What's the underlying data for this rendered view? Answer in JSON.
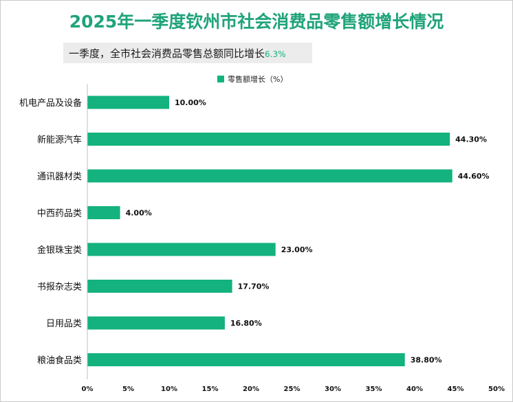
{
  "title": "2025年一季度钦州市社会消费品零售额增长情况",
  "subtitle": {
    "text": "一季度，全市社会消费品零售总额同比增长",
    "value": "6.3%"
  },
  "colors": {
    "bar": "#13b27e",
    "title": "#1fa37a"
  },
  "chart_data": {
    "type": "bar",
    "orientation": "horizontal",
    "title": "2025年一季度钦州市社会消费品零售额增长情况",
    "categories": [
      "机电产品及设备",
      "新能源汽车",
      "通讯器材类",
      "中西药品类",
      "金银珠宝类",
      "书报杂志类",
      "日用品类",
      "粮油食品类"
    ],
    "series": [
      {
        "name": "零售额增长（%）",
        "values": [
          10.0,
          44.3,
          44.6,
          4.0,
          23.0,
          17.7,
          16.8,
          38.8
        ],
        "labels": [
          "10.00%",
          "44.30%",
          "44.60%",
          "4.00%",
          "23.00%",
          "17.70%",
          "16.80%",
          "38.80%"
        ]
      }
    ],
    "xlim": [
      0,
      50
    ],
    "xticks": [
      "0%",
      "5%",
      "10%",
      "15%",
      "20%",
      "25%",
      "30%",
      "35%",
      "40%",
      "45%",
      "50%"
    ],
    "legend_position": "top-center",
    "grid": false
  }
}
